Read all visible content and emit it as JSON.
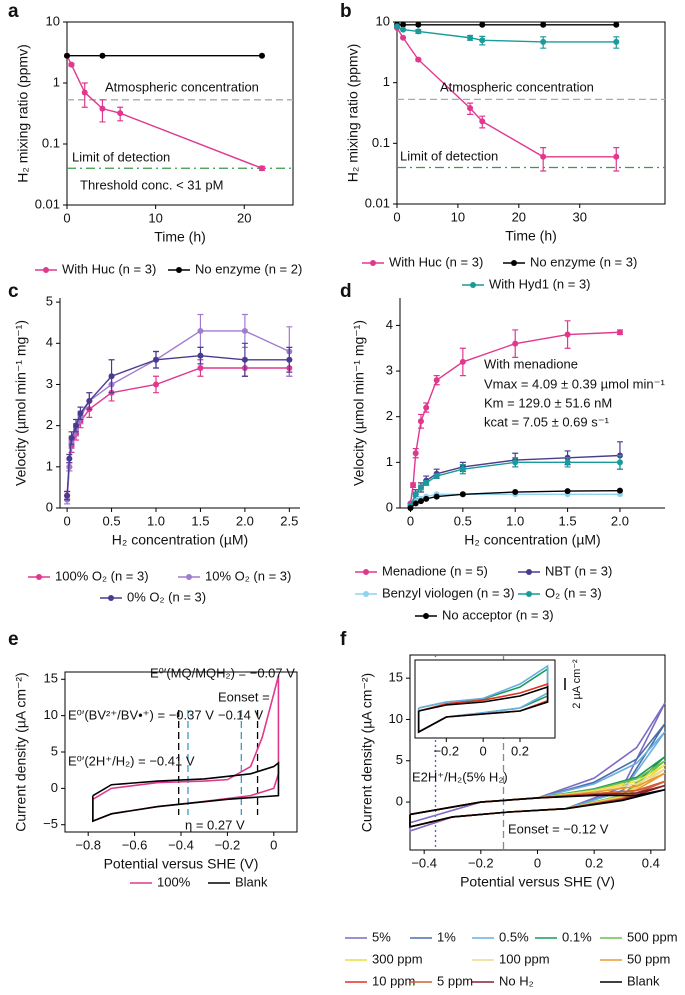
{
  "chart_data": [
    {
      "panel": "a",
      "type": "line",
      "log_y": true,
      "frame": true,
      "markers": true,
      "xlabel": "Time (h)",
      "ylabel": "H₂ mixing ratio (ppmv)",
      "xlim": [
        0,
        25.5
      ],
      "ylim": [
        0.01,
        10
      ],
      "xticks": [
        0,
        10,
        20
      ],
      "yticks": [
        0.01,
        0.1,
        1,
        10
      ],
      "hlines": [
        {
          "value": 0.53,
          "color": "#aaaaaa",
          "style": "dashed"
        },
        {
          "value": 0.04,
          "color": "#3a9a4a",
          "style": "dashdot"
        }
      ],
      "annotations": [
        "Atmospheric concentration",
        "Limit of detection",
        "Threshold conc. < 31 pM"
      ],
      "series": [
        {
          "name": "With Huc (n = 3)",
          "color": "#e0388f",
          "x": [
            0,
            0.5,
            2,
            4,
            6,
            22
          ],
          "values": [
            2.8,
            2.0,
            0.7,
            0.38,
            0.32,
            0.04
          ],
          "errors": [
            0,
            0.1,
            0.3,
            0.15,
            0.08,
            0.003
          ]
        },
        {
          "name": "No enzyme (n = 2)",
          "color": "#000000",
          "x": [
            0,
            4,
            22
          ],
          "values": [
            2.8,
            2.8,
            2.8
          ]
        }
      ]
    },
    {
      "panel": "b",
      "type": "line",
      "log_y": true,
      "frame": true,
      "markers": true,
      "xlabel": "Time (h)",
      "ylabel": "H₂ mixing ratio (ppmv)",
      "xlim": [
        0,
        44
      ],
      "ylim": [
        0.01,
        10
      ],
      "xticks": [
        0,
        10,
        20,
        30
      ],
      "yticks": [
        0.01,
        0.1,
        1,
        10
      ],
      "hlines": [
        {
          "value": 0.53,
          "color": "#aaaaaa",
          "style": "dashed"
        },
        {
          "value": 0.04,
          "color": "#3a9a4a",
          "style": "dashdot"
        }
      ],
      "annotations": [
        "Atmospheric concentration",
        "Limit of detection"
      ],
      "series": [
        {
          "name": "With Huc (n = 3)",
          "color": "#e0388f",
          "x": [
            0,
            1,
            3.5,
            12,
            14,
            24,
            36
          ],
          "values": [
            8,
            5.5,
            2.4,
            0.38,
            0.23,
            0.06,
            0.06
          ],
          "errors": [
            0,
            0,
            0.1,
            0.08,
            0.05,
            0.025,
            0.025
          ]
        },
        {
          "name": "No enzyme (n = 3)",
          "color": "#000000",
          "x": [
            0,
            1,
            3.5,
            14,
            24,
            36
          ],
          "values": [
            9,
            9,
            9,
            9,
            9,
            9
          ]
        },
        {
          "name": "With Hyd1 (n = 3)",
          "color": "#1a9a9a",
          "x": [
            0,
            1,
            3.5,
            12,
            14,
            24,
            36
          ],
          "values": [
            8.5,
            7.5,
            7,
            5.5,
            5,
            4.7,
            4.7
          ],
          "errors": [
            0,
            0,
            0.5,
            0.5,
            0.8,
            1,
            1
          ]
        }
      ]
    },
    {
      "panel": "c",
      "type": "line",
      "frame": false,
      "markers": true,
      "xlabel": "H₂ concentration (µM)",
      "ylabel": "Velocity (µmol min⁻¹ mg⁻¹)",
      "xlim": [
        -0.08,
        2.62
      ],
      "ylim": [
        0,
        5.1
      ],
      "xticks": [
        0,
        0.5,
        {
          "value": 1,
          "label": "1.0"
        },
        1.5,
        {
          "value": 2,
          "label": "2.0"
        },
        2.5
      ],
      "yticks": [
        0,
        1,
        2,
        3,
        4,
        5
      ],
      "series": [
        {
          "name": "100% O₂ (n = 3)",
          "color": "#e0388f",
          "x": [
            0,
            0.025,
            0.05,
            0.1,
            0.15,
            0.25,
            0.5,
            1,
            1.5,
            2,
            2.5
          ],
          "values": [
            0.3,
            1,
            1.5,
            1.8,
            2.1,
            2.4,
            2.8,
            3.0,
            3.4,
            3.4,
            3.4
          ],
          "errors": [
            0.1,
            0.1,
            0.15,
            0.15,
            0.15,
            0.2,
            0.2,
            0.2,
            0.2,
            0.2,
            0.2
          ]
        },
        {
          "name": "10% O₂ (n = 3)",
          "color": "#a07cd0",
          "x": [
            0,
            0.025,
            0.05,
            0.1,
            0.15,
            0.25,
            0.5,
            1,
            1.5,
            2,
            2.5
          ],
          "values": [
            0.2,
            1,
            1.6,
            1.9,
            2.2,
            2.6,
            3.0,
            3.6,
            4.3,
            4.3,
            3.8
          ],
          "errors": [
            0.1,
            0.1,
            0.15,
            0.15,
            0.15,
            0.2,
            0.2,
            0.2,
            0.4,
            0.4,
            0.6
          ]
        },
        {
          "name": "0% O₂ (n = 3)",
          "color": "#4b3b8f",
          "x": [
            0,
            0.025,
            0.05,
            0.1,
            0.15,
            0.25,
            0.5,
            1,
            1.5,
            2,
            2.5
          ],
          "values": [
            0.3,
            1.2,
            1.7,
            2.0,
            2.3,
            2.6,
            3.2,
            3.6,
            3.7,
            3.6,
            3.6
          ],
          "errors": [
            0.1,
            0.1,
            0.15,
            0.15,
            0.15,
            0.2,
            0.4,
            0.2,
            0.2,
            0.4,
            0.3
          ]
        }
      ]
    },
    {
      "panel": "d",
      "type": "line",
      "frame": false,
      "markers": true,
      "xlabel": "H₂ concentration (µM)",
      "ylabel": "Velocity (µmol min⁻¹ mg⁻¹)",
      "xlim": [
        -0.1,
        2.43
      ],
      "ylim": [
        0,
        4.6
      ],
      "xticks": [
        0,
        0.5,
        {
          "value": 1,
          "label": "1.0"
        },
        1.5,
        {
          "value": 2,
          "label": "2.0"
        }
      ],
      "yticks": [
        0,
        1,
        2,
        3,
        4
      ],
      "annotations": [
        "With menadione",
        "Vmax = 4.09 ± 0.39 µmol min⁻¹",
        "Km = 129.0 ± 51.6 nM",
        "kcat = 7.05 ± 0.69 s⁻¹"
      ],
      "series": [
        {
          "name": "Menadione (n = 5)",
          "color": "#e0388f",
          "x": [
            0,
            0.025,
            0.05,
            0.1,
            0.15,
            0.25,
            0.5,
            1,
            1.5,
            2
          ],
          "values": [
            0.1,
            0.5,
            1.2,
            1.9,
            2.2,
            2.8,
            3.2,
            3.6,
            3.8,
            3.85
          ],
          "errors": [
            0,
            0.05,
            0.1,
            0.15,
            0.1,
            0.1,
            0.3,
            0.3,
            0.3,
            0.05
          ]
        },
        {
          "name": "NBT (n = 3)",
          "color": "#4b3b8f",
          "x": [
            0,
            0.05,
            0.1,
            0.15,
            0.25,
            0.5,
            1,
            1.5,
            2
          ],
          "values": [
            0.05,
            0.3,
            0.45,
            0.6,
            0.75,
            0.9,
            1.05,
            1.1,
            1.15
          ],
          "errors": [
            0.05,
            0.1,
            0.1,
            0.1,
            0.1,
            0.1,
            0.15,
            0.15,
            0.3
          ]
        },
        {
          "name": "Benzyl viologen (n = 3)",
          "color": "#8fd4ef",
          "x": [
            0,
            0.05,
            0.1,
            0.15,
            0.25,
            0.5,
            1,
            1.5,
            2
          ],
          "values": [
            0.05,
            0.15,
            0.2,
            0.25,
            0.3,
            0.3,
            0.3,
            0.3,
            0.3
          ]
        },
        {
          "name": "O₂ (n = 3)",
          "color": "#1a9a9a",
          "x": [
            0,
            0.05,
            0.1,
            0.15,
            0.25,
            0.5,
            1,
            1.5,
            2
          ],
          "values": [
            0.05,
            0.3,
            0.45,
            0.55,
            0.7,
            0.85,
            1.0,
            1.0,
            1.0
          ],
          "errors": [
            0.05,
            0.05,
            0.05,
            0.05,
            0.05,
            0.1,
            0.1,
            0.1,
            0.15
          ]
        },
        {
          "name": "No acceptor (n = 3)",
          "color": "#000000",
          "x": [
            0,
            0.05,
            0.1,
            0.15,
            0.25,
            0.5,
            1,
            1.5,
            2
          ],
          "values": [
            0,
            0.1,
            0.15,
            0.2,
            0.25,
            0.3,
            0.35,
            0.37,
            0.38
          ]
        }
      ]
    },
    {
      "panel": "e",
      "type": "line",
      "frame": true,
      "markers": false,
      "xlabel": "Potential versus SHE (V)",
      "ylabel": "Current density (µA cm⁻²)",
      "xlim": [
        -0.9,
        0.1
      ],
      "ylim": [
        -6,
        16
      ],
      "xticks": [
        {
          "value": -0.8,
          "label": "−0.8"
        },
        {
          "value": -0.6,
          "label": "−0.6"
        },
        {
          "value": -0.4,
          "label": "−0.4"
        },
        {
          "value": -0.2,
          "label": "−0.2"
        },
        0
      ],
      "yticks": [
        {
          "value": -5,
          "label": "−5"
        },
        0,
        5,
        10,
        15
      ],
      "vlines": [
        {
          "value": -0.41,
          "color": "#000000",
          "style": "dashed"
        },
        {
          "value": -0.37,
          "color": "#3a9ac8",
          "style": "dashed"
        },
        {
          "value": -0.14,
          "color": "#3a9ac8",
          "style": "dashed"
        },
        {
          "value": -0.07,
          "color": "#000000",
          "style": "dashed"
        }
      ],
      "annotations": [
        "E⁰′(MQ/MQH₂) = −0.07 V",
        "E⁰′(BV²⁺/BV•⁺) = −0.37 V",
        "E⁰′(2H⁺/H₂) = −0.41 V",
        "Eonset =",
        "−0.14 V",
        "η = 0.27 V"
      ],
      "series": [
        {
          "name": "100%",
          "color": "#e0388f",
          "x": [
            -0.78,
            -0.7,
            -0.5,
            -0.3,
            -0.2,
            -0.1,
            -0.05,
            0,
            0.02,
            0.02,
            0,
            -0.1,
            -0.3,
            -0.5,
            -0.7,
            -0.78,
            -0.78
          ],
          "values": [
            -1.5,
            0,
            0.8,
            1,
            1.2,
            3,
            7,
            13,
            15.5,
            2,
            0,
            -1,
            -1.8,
            -2.5,
            -3.5,
            -4.5,
            -1.5
          ]
        },
        {
          "name": "Blank",
          "color": "#000000",
          "x": [
            -0.78,
            -0.7,
            -0.5,
            -0.3,
            -0.1,
            0,
            0.02,
            0.02,
            -0.2,
            -0.5,
            -0.7,
            -0.78,
            -0.78
          ],
          "values": [
            -1,
            0.5,
            1,
            1.3,
            2,
            3,
            3.5,
            -1,
            -1.5,
            -2.5,
            -3.5,
            -4.5,
            -1
          ]
        }
      ]
    },
    {
      "panel": "f",
      "type": "line",
      "frame": true,
      "markers": false,
      "xlabel": "Potential versus SHE (V)",
      "ylabel": "Current density (µA cm⁻²)",
      "xlim": [
        -0.45,
        0.45
      ],
      "ylim": [
        -5.8,
        17.8
      ],
      "xticks": [
        {
          "value": -0.4,
          "label": "−0.4"
        },
        {
          "value": -0.2,
          "label": "−0.2"
        },
        0,
        0.2,
        0.4
      ],
      "yticks": [
        0,
        5,
        10,
        15
      ],
      "vlines": [
        {
          "value": -0.36,
          "color": "#3a6ac8",
          "style": "dotted"
        },
        {
          "value": -0.12,
          "color": "#888888",
          "style": "dashed"
        }
      ],
      "annotations": [
        "E2H⁺/H₂(5% H₂)",
        "Eonset = −0.12 V"
      ],
      "x": [
        -0.45,
        -0.2,
        0,
        0.2,
        0.35,
        0.45,
        0.3,
        0.1,
        -0.1,
        -0.3,
        -0.45,
        -0.45
      ],
      "series": [
        {
          "name": "5%",
          "color": "#7b6bc4",
          "values": [
            -2.5,
            0,
            0.5,
            2.9,
            6.6,
            12,
            1.8,
            -0.8,
            -1.2,
            -1.8,
            -3.5,
            -2.5
          ]
        },
        {
          "name": "1%",
          "color": "#4a6fa8",
          "values": [
            -1.5,
            0,
            0.5,
            2.4,
            5.2,
            9.5,
            1.4,
            -0.8,
            -1.2,
            -1.8,
            -3,
            -1.5
          ]
        },
        {
          "name": "0.5%",
          "color": "#6aaee0",
          "values": [
            -1.5,
            0,
            0.5,
            2.2,
            4.7,
            8.5,
            1.3,
            -0.8,
            -1.2,
            -1.8,
            -3,
            -1.5
          ]
        },
        {
          "name": "0.1%",
          "color": "#1a9a5a",
          "values": [
            -1.5,
            0,
            0.5,
            1.6,
            3.0,
            5.5,
            0.8,
            -0.8,
            -1.2,
            -1.8,
            -3,
            -1.5
          ]
        },
        {
          "name": "500 ppm",
          "color": "#6cc04a",
          "values": [
            -1.5,
            0,
            0.5,
            1.5,
            2.8,
            5,
            0.8,
            -0.8,
            -1.2,
            -1.8,
            -3,
            -1.5
          ]
        },
        {
          "name": "300 ppm",
          "color": "#e8e040",
          "values": [
            -1.5,
            0,
            0.5,
            1.4,
            2.5,
            4.5,
            0.7,
            -0.8,
            -1.2,
            -1.8,
            -3,
            -1.5
          ]
        },
        {
          "name": "100 ppm",
          "color": "#f0d890",
          "values": [
            -1.5,
            0,
            0.5,
            1.3,
            2.2,
            4,
            0.6,
            -0.8,
            -1.2,
            -1.8,
            -3,
            -1.5
          ]
        },
        {
          "name": "50 ppm",
          "color": "#e89a30",
          "values": [
            -1.5,
            0,
            0.5,
            1.2,
            1.9,
            3.5,
            0.5,
            -0.8,
            -1.2,
            -1.8,
            -3,
            -1.5
          ]
        },
        {
          "name": "10 ppm",
          "color": "#e03020",
          "values": [
            -1.5,
            0,
            0.5,
            1.0,
            1.4,
            2.5,
            0.4,
            -0.8,
            -1.2,
            -1.8,
            -3,
            -1.5
          ]
        },
        {
          "name": "5 ppm",
          "color": "#d06030",
          "values": [
            -1.5,
            0,
            0.5,
            1.0,
            1.4,
            2.5,
            0.4,
            -0.8,
            -1.2,
            -1.8,
            -3,
            -1.5
          ]
        },
        {
          "name": "No H₂",
          "color": "#8a2030",
          "values": [
            -1.5,
            0,
            0.5,
            0.9,
            1.1,
            2,
            0.3,
            -0.8,
            -1.2,
            -1.8,
            -3,
            -1.5
          ]
        },
        {
          "name": "Blank",
          "color": "#000000",
          "values": [
            -1.5,
            0,
            0.5,
            0.8,
            0.8,
            1.5,
            0.2,
            -0.8,
            -1.2,
            -1.8,
            -3,
            -1.5
          ]
        }
      ]
    },
    {
      "type": "line",
      "frame": true,
      "markers": false,
      "xlim": [
        -0.37,
        0.39
      ],
      "ylim": [
        -5,
        8
      ],
      "xticks": [
        {
          "value": -0.2,
          "label": "−0.2"
        },
        0,
        0.2
      ],
      "x": [
        -0.35,
        -0.2,
        0,
        0.2,
        0.35,
        0.35,
        0.2,
        0,
        -0.2,
        -0.35,
        -0.35
      ],
      "scalebar": {
        "value": 2,
        "label": "2 µA cm⁻²"
      },
      "series": [
        {
          "color": "#1a9a5a",
          "values": [
            0,
            1,
            1.5,
            3.5,
            6.5,
            2,
            0,
            -0.8,
            -1.5,
            -4,
            0
          ]
        },
        {
          "color": "#6aaee0",
          "values": [
            0,
            1,
            1.6,
            4,
            7,
            2.5,
            0,
            -0.8,
            -1.5,
            -4,
            0
          ]
        },
        {
          "color": "#e03020",
          "values": [
            -0.5,
            0.7,
            1.3,
            2.5,
            4,
            1.2,
            -0.5,
            -1,
            -1.5,
            -4,
            -0.5
          ]
        },
        {
          "color": "#000000",
          "values": [
            -0.5,
            0.5,
            1,
            2,
            3.5,
            1,
            -0.5,
            -1,
            -1.5,
            -4,
            -0.5
          ]
        }
      ]
    }
  ]
}
